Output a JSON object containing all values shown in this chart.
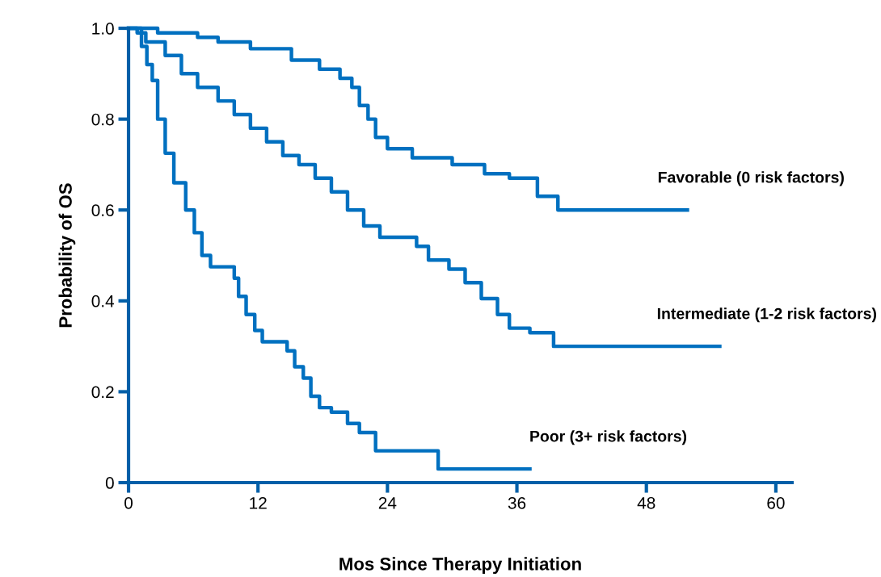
{
  "chart_data": {
    "type": "step",
    "xlabel": "Mos Since Therapy Initiation",
    "ylabel": "Probability of OS",
    "xlim": [
      0,
      61.5
    ],
    "ylim": [
      0,
      1.0
    ],
    "xticks": [
      0,
      12,
      24,
      36,
      48,
      60
    ],
    "yticks": [
      0,
      0.2,
      0.4,
      0.6,
      0.8,
      {
        "value": 1,
        "label": "1.0"
      }
    ],
    "grid": false,
    "legend": false,
    "marker": "none",
    "line_style": "solid",
    "series": [
      {
        "name": "Favorable (0 risk factors)",
        "color": "#0070c0",
        "x": [
          0,
          2.7,
          6.4,
          8.3,
          11.3,
          15.1,
          17.7,
          19.6,
          20.7,
          21.4,
          22.2,
          22.9,
          24.0,
          26.3,
          30.0,
          33.0,
          35.3,
          37.9,
          39.8,
          51.8
        ],
        "values": [
          1.0,
          0.99,
          0.98,
          0.97,
          0.955,
          0.93,
          0.91,
          0.89,
          0.87,
          0.83,
          0.8,
          0.76,
          0.735,
          0.715,
          0.7,
          0.68,
          0.67,
          0.63,
          0.6,
          0.6
        ]
      },
      {
        "name": "Intermediate (1-2 risk factors)",
        "color": "#0070c0",
        "x": [
          0,
          0.8,
          1.6,
          3.4,
          4.9,
          6.4,
          8.3,
          9.8,
          11.3,
          12.8,
          14.3,
          15.8,
          17.3,
          18.8,
          20.3,
          21.8,
          23.3,
          26.7,
          27.8,
          29.7,
          31.2,
          32.7,
          34.2,
          35.3,
          37.2,
          39.4,
          54.8
        ],
        "values": [
          1.0,
          0.99,
          0.97,
          0.94,
          0.9,
          0.87,
          0.84,
          0.81,
          0.78,
          0.75,
          0.72,
          0.7,
          0.67,
          0.64,
          0.6,
          0.565,
          0.54,
          0.52,
          0.49,
          0.47,
          0.44,
          0.405,
          0.37,
          0.34,
          0.33,
          0.3,
          0.3
        ]
      },
      {
        "name": "Poor (3+ risk factors)",
        "color": "#0070c0",
        "x": [
          0,
          1.2,
          1.7,
          2.2,
          2.7,
          3.4,
          4.2,
          5.3,
          6.1,
          6.8,
          7.6,
          9.8,
          10.2,
          10.9,
          11.7,
          12.4,
          14.7,
          15.4,
          16.2,
          16.9,
          17.7,
          18.8,
          20.3,
          21.4,
          22.9,
          28.7,
          37.2
        ],
        "values": [
          1.0,
          0.96,
          0.92,
          0.885,
          0.8,
          0.725,
          0.66,
          0.6,
          0.55,
          0.5,
          0.475,
          0.45,
          0.41,
          0.37,
          0.335,
          0.31,
          0.29,
          0.255,
          0.23,
          0.19,
          0.165,
          0.155,
          0.13,
          0.11,
          0.07,
          0.03,
          0.03
        ]
      }
    ]
  }
}
